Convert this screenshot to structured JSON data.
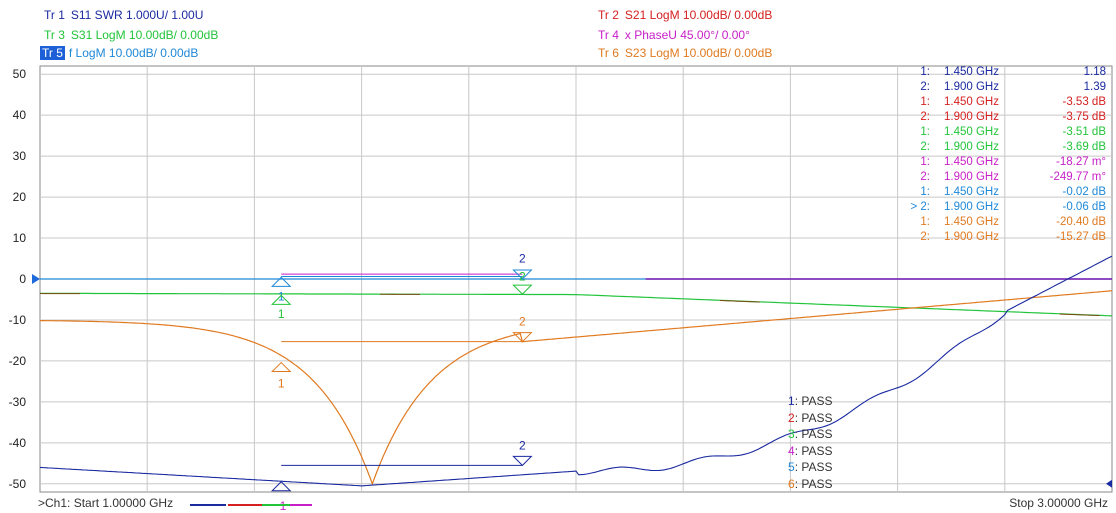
{
  "traces": [
    {
      "id": "Tr 1",
      "desc": "S11 SWR 1.000U/  1.00U",
      "color": "#1a2aa0",
      "active": false
    },
    {
      "id": "Tr 2",
      "desc": "S21 LogM 10.00dB/  0.00dB",
      "color": "#d42020",
      "active": false
    },
    {
      "id": "Tr 3",
      "desc": "S31 LogM 10.00dB/  0.00dB",
      "color": "#22c43a",
      "active": false
    },
    {
      "id": "Tr 4",
      "desc": "x PhaseU 45.00°/  0.00°",
      "color": "#c81ec8",
      "active": false
    },
    {
      "id": "Tr 5",
      "desc": "f LogM 10.00dB/  0.00dB",
      "color": "#1e88d8",
      "active": true
    },
    {
      "id": "Tr 6",
      "desc": "S23 LogM 10.00dB/  0.00dB",
      "color": "#e07a20",
      "active": false
    }
  ],
  "y_axis": {
    "ticks": [
      "50",
      "40",
      "30",
      "20",
      "10",
      "0",
      "-10",
      "-20",
      "-30",
      "-40",
      "-50"
    ],
    "min": -52,
    "max": 52
  },
  "markers": [
    {
      "num": "1:",
      "freq": "1.450  GHz",
      "val": "1.18",
      "color": "#1a2aa0"
    },
    {
      "num": "2:",
      "freq": "1.900  GHz",
      "val": "1.39",
      "color": "#1a2aa0"
    },
    {
      "num": "1:",
      "freq": "1.450  GHz",
      "val": "-3.53 dB",
      "color": "#d42020"
    },
    {
      "num": "2:",
      "freq": "1.900  GHz",
      "val": "-3.75 dB",
      "color": "#d42020"
    },
    {
      "num": "1:",
      "freq": "1.450  GHz",
      "val": "-3.51 dB",
      "color": "#22c43a"
    },
    {
      "num": "2:",
      "freq": "1.900  GHz",
      "val": "-3.69 dB",
      "color": "#22c43a"
    },
    {
      "num": "1:",
      "freq": "1.450  GHz",
      "val": "-18.27 m°",
      "color": "#c81ec8"
    },
    {
      "num": "2:",
      "freq": "1.900  GHz",
      "val": "-249.77 m°",
      "color": "#c81ec8"
    },
    {
      "num": "1:",
      "freq": "1.450  GHz",
      "val": "-0.02 dB",
      "color": "#1e88d8"
    },
    {
      "num": "> 2:",
      "freq": "1.900  GHz",
      "val": "-0.06 dB",
      "color": "#1e88d8"
    },
    {
      "num": "1:",
      "freq": "1.450  GHz",
      "val": "-20.40 dB",
      "color": "#e07a20"
    },
    {
      "num": "2:",
      "freq": "1.900  GHz",
      "val": "-15.27 dB",
      "color": "#e07a20"
    }
  ],
  "limit_tests": [
    {
      "num": "1",
      "text": ": PASS",
      "color": "#1a2aa0"
    },
    {
      "num": "2",
      "text": ": PASS",
      "color": "#d42020"
    },
    {
      "num": "3",
      "text": ": PASS",
      "color": "#22c43a"
    },
    {
      "num": "4",
      "text": ": PASS",
      "color": "#c81ec8"
    },
    {
      "num": "5",
      "text": ": PASS",
      "color": "#1e88d8"
    },
    {
      "num": "6",
      "text": ": PASS",
      "color": "#e07a20"
    }
  ],
  "footer": {
    "start": ">Ch1:  Start  1.00000 GHz",
    "stop": "Stop  3.00000 GHz"
  },
  "marker_tags": {
    "m1": "1",
    "m2": "2"
  },
  "colors": {
    "grid": "#c8c8c8",
    "border": "#888888",
    "reference": "#1e6ad8"
  }
}
